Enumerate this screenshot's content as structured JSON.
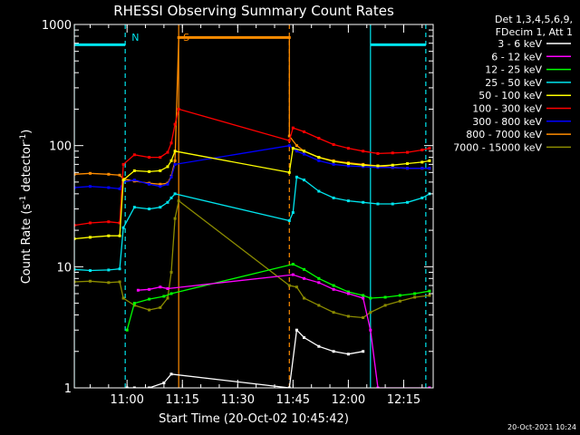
{
  "chart_data": {
    "type": "line",
    "title": "RHESSI Observing Summary Count Rates",
    "xlabel": "Start Time (20-Oct-02 10:45:42)",
    "ylabel_main": "Count Rate (s",
    "ylabel_sup": "-1",
    "ylabel_end": " detector",
    "ylabel_close": ")",
    "y_scale": "log",
    "ylim": [
      1,
      1000
    ],
    "xlim": [
      "10:45:42",
      "12:23:00"
    ],
    "y_ticks": [
      {
        "value": 1,
        "label": "1"
      },
      {
        "value": 10,
        "label": "10"
      },
      {
        "value": 100,
        "label": "100"
      },
      {
        "value": 1000,
        "label": "1000"
      }
    ],
    "x_ticks": [
      {
        "value": "11:00",
        "label": "11:00"
      },
      {
        "value": "11:15",
        "label": "11:15"
      },
      {
        "value": "11:30",
        "label": "11:30"
      },
      {
        "value": "11:45",
        "label": "11:45"
      },
      {
        "value": "12:00",
        "label": "12:00"
      },
      {
        "value": "12:15",
        "label": "12:15"
      }
    ],
    "legend_header": [
      "Det 1,3,4,5,6,9,",
      "FDecim 1, Att 1"
    ],
    "legend_position": "right",
    "footer_date": "20-Oct-2021 10:24",
    "annotations": [
      {
        "label": "N",
        "time": "11:00",
        "color": "#00e5ee"
      },
      {
        "label": "S",
        "time": "11:14",
        "color": "#ff8c00"
      }
    ],
    "vlines": [
      {
        "time": "10:45:42",
        "color": "#00e5ee",
        "style": "solid"
      },
      {
        "time": "10:59:30",
        "color": "#00e5ee",
        "style": "dashed"
      },
      {
        "time": "11:14:00",
        "color": "#ff8c00",
        "style": "solid"
      },
      {
        "time": "11:44:00",
        "color": "#ff8c00",
        "style": "dashed"
      },
      {
        "time": "12:06:00",
        "color": "#00e5ee",
        "style": "solid"
      },
      {
        "time": "12:21:00",
        "color": "#00e5ee",
        "style": "dashed"
      }
    ],
    "hbars": [
      {
        "start": "10:45:42",
        "end": "10:59:30",
        "value": 680,
        "color": "#00e5ee"
      },
      {
        "start": "11:14:00",
        "end": "11:44:00",
        "value": 780,
        "color": "#ff8c00"
      },
      {
        "start": "12:06:00",
        "end": "12:21:00",
        "value": 680,
        "color": "#00e5ee"
      }
    ],
    "series": [
      {
        "name": "3 - 6 keV",
        "color": "#ffffff",
        "points": [
          [
            "11:00",
            1.0
          ],
          [
            "11:02",
            1.0
          ],
          [
            "11:06",
            1.0
          ],
          [
            "11:10",
            1.1
          ],
          [
            "11:12",
            1.3
          ],
          [
            "11:44",
            1.0
          ],
          [
            "11:46",
            3.0
          ],
          [
            "11:48",
            2.6
          ],
          [
            "11:52",
            2.2
          ],
          [
            "11:56",
            2.0
          ],
          [
            "12:00",
            1.9
          ],
          [
            "12:04",
            2.0
          ]
        ]
      },
      {
        "name": "6 - 12 keV",
        "color": "#ff00ff",
        "points": [
          [
            "11:03",
            6.4
          ],
          [
            "11:06",
            6.5
          ],
          [
            "11:09",
            6.8
          ],
          [
            "11:11",
            6.6
          ],
          [
            "11:45",
            8.6
          ],
          [
            "11:48",
            8.0
          ],
          [
            "11:52",
            7.4
          ],
          [
            "11:56",
            6.5
          ],
          [
            "12:00",
            6.0
          ],
          [
            "12:04",
            5.5
          ],
          [
            "12:06",
            3.0
          ],
          [
            "12:08",
            1.0
          ],
          [
            "12:22",
            1.0
          ]
        ]
      },
      {
        "name": "12 - 25 keV",
        "color": "#00ff00",
        "points": [
          [
            "11:00",
            3.0
          ],
          [
            "11:02",
            5.0
          ],
          [
            "11:06",
            5.4
          ],
          [
            "11:10",
            5.7
          ],
          [
            "11:12",
            6.0
          ],
          [
            "11:45",
            10.5
          ],
          [
            "11:48",
            9.5
          ],
          [
            "11:52",
            8.0
          ],
          [
            "11:56",
            7.0
          ],
          [
            "12:00",
            6.2
          ],
          [
            "12:04",
            5.8
          ],
          [
            "12:06",
            5.5
          ],
          [
            "12:10",
            5.6
          ],
          [
            "12:14",
            5.8
          ],
          [
            "12:18",
            6.0
          ],
          [
            "12:22",
            6.3
          ]
        ]
      },
      {
        "name": "25 - 50 keV",
        "color": "#00e5ee",
        "points": [
          [
            "10:45:42",
            9.5
          ],
          [
            "10:50",
            9.3
          ],
          [
            "10:55",
            9.4
          ],
          [
            "10:58",
            9.6
          ],
          [
            "10:59",
            21
          ],
          [
            "11:02",
            31
          ],
          [
            "11:06",
            30
          ],
          [
            "11:09",
            31
          ],
          [
            "11:11",
            34
          ],
          [
            "11:12",
            37
          ],
          [
            "11:13",
            40
          ],
          [
            "11:44",
            24
          ],
          [
            "11:45",
            28
          ],
          [
            "11:46",
            55
          ],
          [
            "11:48",
            52
          ],
          [
            "11:52",
            42
          ],
          [
            "11:56",
            37
          ],
          [
            "12:00",
            35
          ],
          [
            "12:04",
            34
          ],
          [
            "12:08",
            33
          ],
          [
            "12:12",
            33
          ],
          [
            "12:16",
            34
          ],
          [
            "12:20",
            37
          ],
          [
            "12:22",
            40
          ]
        ]
      },
      {
        "name": "50 - 100 keV",
        "color": "#ffff00",
        "points": [
          [
            "10:45:42",
            17
          ],
          [
            "10:50",
            17.5
          ],
          [
            "10:55",
            18
          ],
          [
            "10:58",
            18
          ],
          [
            "10:59",
            52
          ],
          [
            "11:02",
            62
          ],
          [
            "11:06",
            61
          ],
          [
            "11:09",
            62
          ],
          [
            "11:11",
            67
          ],
          [
            "11:12",
            75
          ],
          [
            "11:13",
            90
          ],
          [
            "11:44",
            60
          ],
          [
            "11:45",
            95
          ],
          [
            "11:48",
            90
          ],
          [
            "11:52",
            80
          ],
          [
            "11:56",
            74
          ],
          [
            "12:00",
            71
          ],
          [
            "12:04",
            69
          ],
          [
            "12:08",
            68
          ],
          [
            "12:12",
            69
          ],
          [
            "12:16",
            71
          ],
          [
            "12:20",
            73
          ],
          [
            "12:22",
            75
          ]
        ]
      },
      {
        "name": "100 - 300 keV",
        "color": "#ff0000",
        "points": [
          [
            "10:45:42",
            22
          ],
          [
            "10:50",
            23
          ],
          [
            "10:55",
            23.5
          ],
          [
            "10:58",
            23
          ],
          [
            "10:59",
            70
          ],
          [
            "11:02",
            84
          ],
          [
            "11:06",
            80
          ],
          [
            "11:09",
            80
          ],
          [
            "11:11",
            88
          ],
          [
            "11:12",
            105
          ],
          [
            "11:13",
            150
          ],
          [
            "11:14",
            200
          ],
          [
            "11:44",
            110
          ],
          [
            "11:45",
            140
          ],
          [
            "11:48",
            130
          ],
          [
            "11:52",
            115
          ],
          [
            "11:56",
            102
          ],
          [
            "12:00",
            95
          ],
          [
            "12:04",
            90
          ],
          [
            "12:08",
            86
          ],
          [
            "12:12",
            87
          ],
          [
            "12:16",
            88
          ],
          [
            "12:20",
            92
          ],
          [
            "12:22",
            95
          ]
        ]
      },
      {
        "name": "300 - 800 keV",
        "color": "#0000ff",
        "points": [
          [
            "10:45:42",
            45
          ],
          [
            "10:50",
            46
          ],
          [
            "10:55",
            45
          ],
          [
            "10:58",
            44
          ],
          [
            "10:59",
            50
          ],
          [
            "11:02",
            52
          ],
          [
            "11:06",
            48
          ],
          [
            "11:09",
            46
          ],
          [
            "11:11",
            48
          ],
          [
            "11:12",
            55
          ],
          [
            "11:13",
            70
          ],
          [
            "11:44",
            100
          ],
          [
            "11:46",
            90
          ],
          [
            "11:48",
            85
          ],
          [
            "11:52",
            75
          ],
          [
            "11:56",
            70
          ],
          [
            "12:00",
            68
          ],
          [
            "12:04",
            67
          ],
          [
            "12:08",
            66
          ],
          [
            "12:12",
            66
          ],
          [
            "12:16",
            65
          ],
          [
            "12:20",
            65
          ],
          [
            "12:22",
            65
          ]
        ]
      },
      {
        "name": "800 - 7000 keV",
        "color": "#ff8c00",
        "points": [
          [
            "10:45:42",
            58
          ],
          [
            "10:50",
            59
          ],
          [
            "10:55",
            58
          ],
          [
            "10:58",
            57
          ],
          [
            "10:59",
            53
          ],
          [
            "11:02",
            51
          ],
          [
            "11:06",
            49
          ],
          [
            "11:09",
            48
          ],
          [
            "11:11",
            49
          ],
          [
            "11:12",
            56
          ],
          [
            "11:13",
            75
          ],
          [
            "11:14",
            780
          ],
          [
            "11:44",
            780
          ],
          [
            "11:44",
            120
          ],
          [
            "11:46",
            100
          ],
          [
            "11:48",
            90
          ],
          [
            "11:52",
            80
          ],
          [
            "11:56",
            75
          ],
          [
            "12:00",
            72
          ],
          [
            "12:04",
            70
          ],
          [
            "12:08",
            68
          ],
          [
            "12:12",
            66
          ],
          [
            "12:16",
            65
          ],
          [
            "12:20",
            65
          ],
          [
            "12:22",
            65
          ]
        ]
      },
      {
        "name": "7000 - 15000 keV",
        "color": "#8b8b00",
        "points": [
          [
            "10:45:42",
            7.5
          ],
          [
            "10:50",
            7.6
          ],
          [
            "10:55",
            7.4
          ],
          [
            "10:58",
            7.5
          ],
          [
            "10:59",
            5.5
          ],
          [
            "11:02",
            4.8
          ],
          [
            "11:06",
            4.4
          ],
          [
            "11:09",
            4.6
          ],
          [
            "11:11",
            5.5
          ],
          [
            "11:12",
            9
          ],
          [
            "11:13",
            25
          ],
          [
            "11:14",
            35
          ],
          [
            "11:44",
            7.0
          ],
          [
            "11:46",
            6.8
          ],
          [
            "11:48",
            5.5
          ],
          [
            "11:52",
            4.8
          ],
          [
            "11:56",
            4.2
          ],
          [
            "12:00",
            3.9
          ],
          [
            "12:04",
            3.8
          ],
          [
            "12:06",
            4.2
          ],
          [
            "12:10",
            4.8
          ],
          [
            "12:14",
            5.2
          ],
          [
            "12:18",
            5.6
          ],
          [
            "12:22",
            5.8
          ]
        ]
      }
    ]
  }
}
